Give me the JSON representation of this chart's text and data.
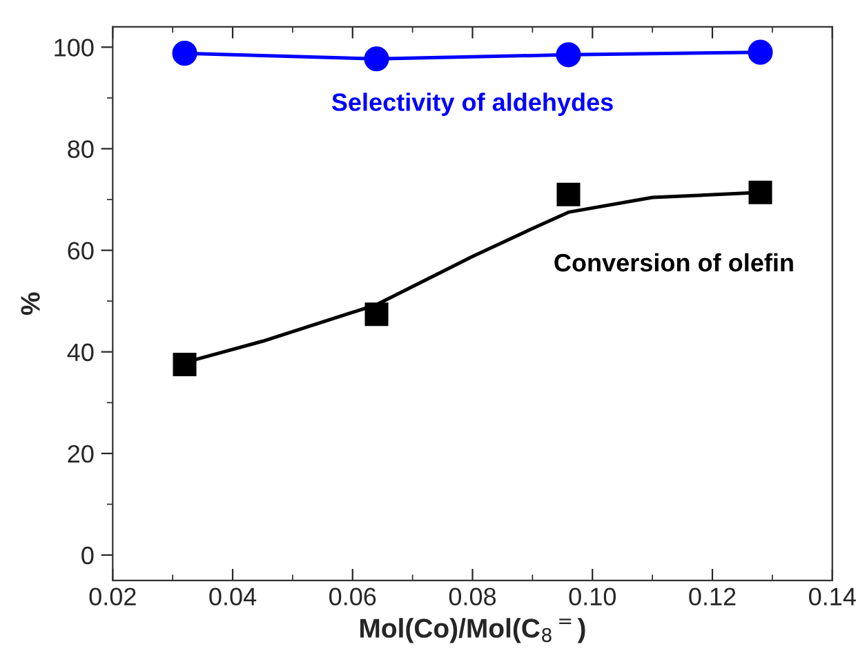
{
  "chart_data": {
    "type": "line",
    "xlabel": "Mol(Co)/Mol(C$_{8}$$^{=}$)",
    "ylabel": "%",
    "x": [
      0.032,
      0.064,
      0.096,
      0.128
    ],
    "series": [
      {
        "color": "#0000ff",
        "marker": "circle",
        "values": [
          98.8,
          97.7,
          98.5,
          99.0
        ]
      },
      {
        "type": "scatter",
        "color": "#000000",
        "marker": "square",
        "values": [
          37.5,
          47.4,
          71.0,
          71.4
        ]
      },
      {
        "type": "line",
        "color": "#000000",
        "marker": "none",
        "x": [
          0.032,
          0.045,
          0.064,
          0.08,
          0.09,
          0.096,
          0.11,
          0.128
        ],
        "values": [
          37.9,
          42.1,
          49.3,
          58.8,
          64.3,
          67.5,
          70.4,
          71.4
        ]
      }
    ],
    "annotations": [
      "Selectivity of aldehydes",
      "Conversion of olefin"
    ],
    "xlim": [
      0.02,
      0.14
    ],
    "xticks": [
      0.02,
      0.04,
      0.06,
      0.08,
      {
        "value": 0.1,
        "label": "0.10"
      },
      0.12,
      0.14
    ],
    "ylim": [
      -5,
      104
    ],
    "yticks": [
      0,
      20,
      40,
      60,
      80,
      100
    ],
    "grid": false,
    "legend": false
  }
}
